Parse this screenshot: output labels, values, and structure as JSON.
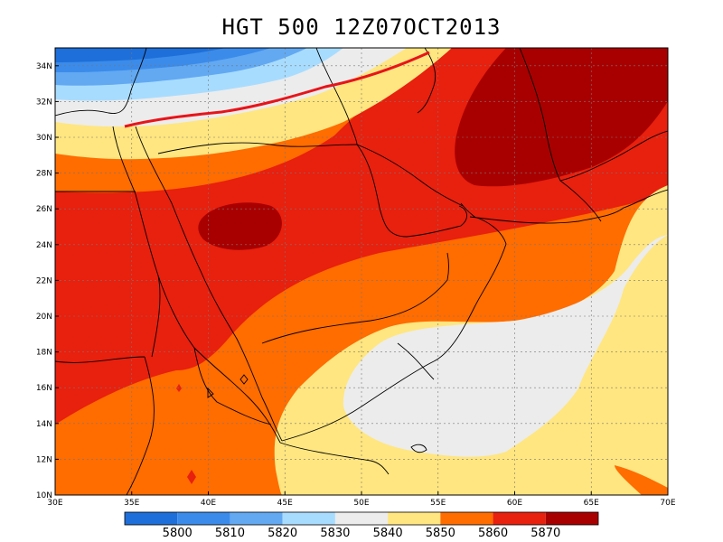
{
  "title": "HGT 500 12Z07OCT2013",
  "map": {
    "lon_range": [
      30,
      70
    ],
    "lat_range": [
      10,
      35
    ],
    "x_ticks": [
      "30E",
      "35E",
      "40E",
      "45E",
      "50E",
      "55E",
      "60E",
      "65E",
      "70E"
    ],
    "y_ticks": [
      "10N",
      "12N",
      "14N",
      "16N",
      "18N",
      "20N",
      "22N",
      "24N",
      "26N",
      "28N",
      "30N",
      "32N",
      "34N"
    ],
    "grid": true,
    "contour_line": {
      "value": 5840,
      "color": "#e8141a"
    }
  },
  "colorbar": {
    "levels": [
      "5800",
      "5810",
      "5820",
      "5830",
      "5840",
      "5850",
      "5860",
      "5870"
    ],
    "colors": [
      "#1e6fd9",
      "#3b8bea",
      "#62a9f2",
      "#a8dcff",
      "#ececec",
      "#ffe680",
      "#ff6c00",
      "#e8200e",
      "#a80000"
    ]
  },
  "palette": {
    "c5800": "#1e6fd9",
    "c5810": "#3b8bea",
    "c5820": "#62a9f2",
    "c5830": "#a8dcff",
    "c5840": "#ececec",
    "c5850": "#ffe680",
    "c5860": "#ff6c00",
    "c5870": "#e8200e",
    "c5880": "#a80000"
  }
}
